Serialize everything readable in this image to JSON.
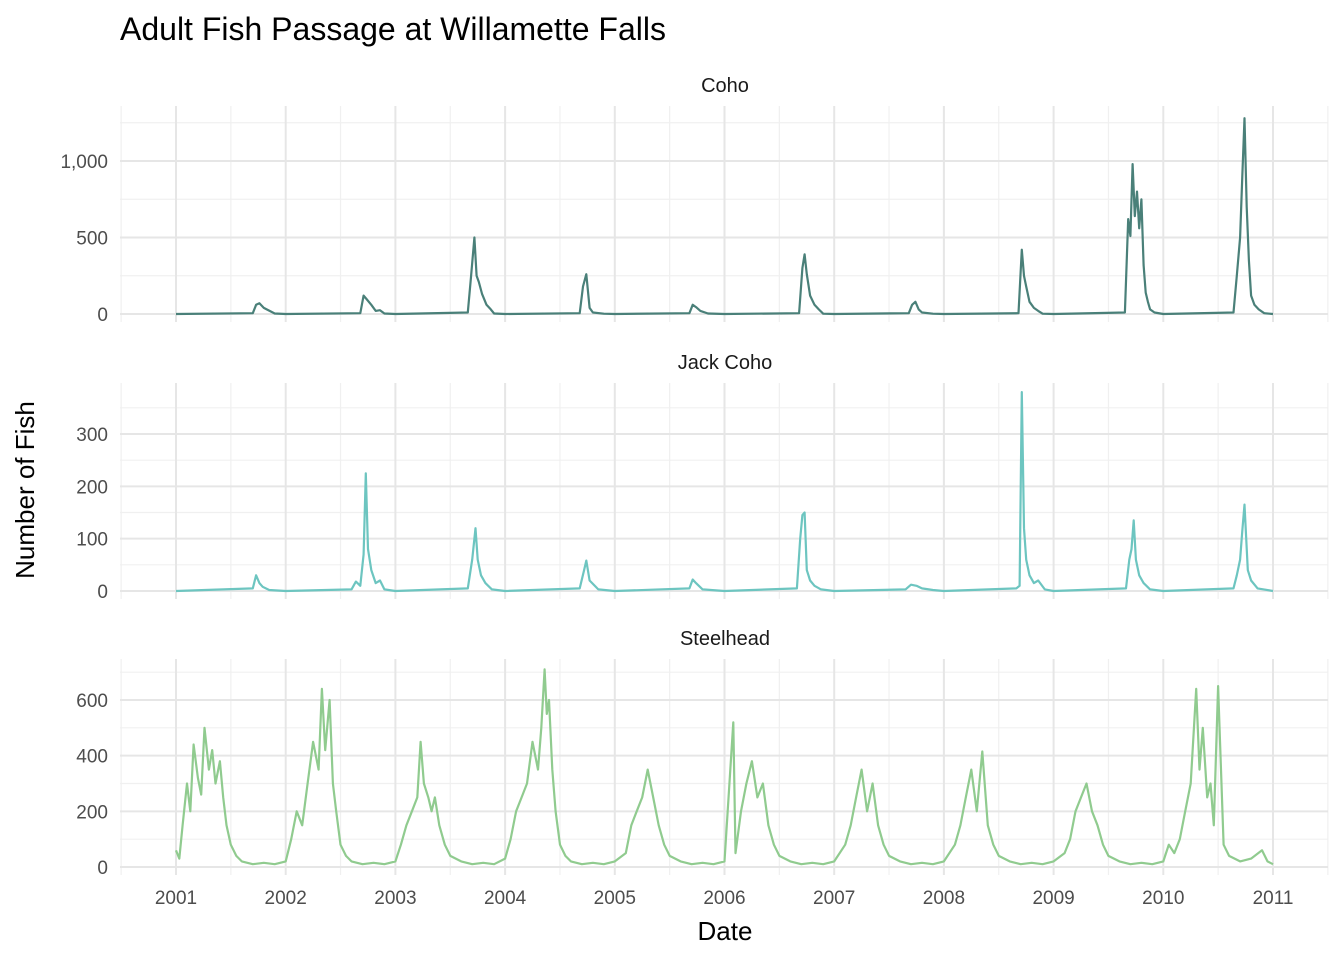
{
  "chart_data": {
    "type": "line",
    "title": "Adult Fish Passage at Willamette Falls",
    "xlabel": "Date",
    "ylabel": "Number of Fish",
    "x_ticks": [
      "2001",
      "2002",
      "2003",
      "2004",
      "2005",
      "2006",
      "2007",
      "2008",
      "2009",
      "2010",
      "2011"
    ],
    "xlim": [
      2001,
      2011
    ],
    "grid": true,
    "legend": "none",
    "panels": [
      {
        "label": "Coho",
        "color": "#4a8079",
        "ylim": [
          0,
          1300
        ],
        "y_ticks": [
          0,
          500,
          1000
        ],
        "y_tick_labels": [
          "0",
          "500",
          "1,000"
        ],
        "series": {
          "x": [
            2001.0,
            2001.7,
            2001.73,
            2001.76,
            2001.8,
            2001.9,
            2002.0,
            2002.68,
            2002.71,
            2002.74,
            2002.78,
            2002.82,
            2002.86,
            2002.9,
            2003.0,
            2003.66,
            2003.69,
            2003.72,
            2003.74,
            2003.76,
            2003.79,
            2003.83,
            2003.87,
            2003.9,
            2004.0,
            2004.68,
            2004.71,
            2004.74,
            2004.77,
            2004.8,
            2004.9,
            2005.0,
            2005.68,
            2005.71,
            2005.74,
            2005.78,
            2005.85,
            2006.0,
            2006.68,
            2006.71,
            2006.73,
            2006.75,
            2006.78,
            2006.82,
            2006.86,
            2006.9,
            2007.0,
            2007.68,
            2007.71,
            2007.74,
            2007.77,
            2007.8,
            2007.9,
            2008.0,
            2008.68,
            2008.71,
            2008.73,
            2008.75,
            2008.78,
            2008.82,
            2008.86,
            2008.9,
            2009.0,
            2009.65,
            2009.68,
            2009.7,
            2009.72,
            2009.74,
            2009.76,
            2009.78,
            2009.8,
            2009.82,
            2009.84,
            2009.86,
            2009.88,
            2009.92,
            2010.0,
            2010.64,
            2010.67,
            2010.7,
            2010.72,
            2010.74,
            2010.76,
            2010.78,
            2010.8,
            2010.83,
            2010.87,
            2010.92,
            2011.0
          ],
          "y": [
            0,
            5,
            60,
            70,
            40,
            3,
            0,
            5,
            120,
            95,
            60,
            20,
            25,
            3,
            0,
            10,
            250,
            500,
            250,
            210,
            130,
            60,
            30,
            3,
            0,
            5,
            180,
            260,
            40,
            10,
            2,
            0,
            5,
            60,
            45,
            20,
            3,
            0,
            5,
            300,
            390,
            260,
            120,
            60,
            30,
            2,
            0,
            5,
            60,
            80,
            30,
            10,
            2,
            0,
            5,
            420,
            250,
            180,
            80,
            40,
            20,
            2,
            0,
            10,
            620,
            510,
            980,
            640,
            800,
            560,
            750,
            320,
            140,
            80,
            30,
            10,
            0,
            10,
            250,
            500,
            900,
            1280,
            700,
            350,
            120,
            60,
            30,
            5,
            0
          ]
        }
      },
      {
        "label": "Jack Coho",
        "color": "#6dc5c0",
        "ylim": [
          0,
          390
        ],
        "y_ticks": [
          0,
          100,
          200,
          300
        ],
        "y_tick_labels": [
          "0",
          "100",
          "200",
          "300"
        ],
        "series": {
          "x": [
            2001.0,
            2001.7,
            2001.73,
            2001.76,
            2001.79,
            2001.85,
            2002.0,
            2002.6,
            2002.64,
            2002.68,
            2002.71,
            2002.73,
            2002.75,
            2002.78,
            2002.82,
            2002.86,
            2002.9,
            2003.0,
            2003.66,
            2003.7,
            2003.73,
            2003.75,
            2003.78,
            2003.82,
            2003.88,
            2004.0,
            2004.68,
            2004.72,
            2004.74,
            2004.77,
            2004.85,
            2005.0,
            2005.68,
            2005.71,
            2005.74,
            2005.8,
            2006.0,
            2006.66,
            2006.69,
            2006.71,
            2006.73,
            2006.75,
            2006.78,
            2006.82,
            2006.88,
            2007.0,
            2007.65,
            2007.7,
            2007.75,
            2007.8,
            2007.9,
            2008.0,
            2008.66,
            2008.69,
            2008.71,
            2008.73,
            2008.75,
            2008.78,
            2008.82,
            2008.86,
            2008.92,
            2009.0,
            2009.66,
            2009.69,
            2009.71,
            2009.73,
            2009.75,
            2009.78,
            2009.82,
            2009.88,
            2010.0,
            2010.64,
            2010.67,
            2010.7,
            2010.72,
            2010.74,
            2010.77,
            2010.8,
            2010.86,
            2011.0
          ],
          "y": [
            0,
            5,
            30,
            15,
            8,
            2,
            0,
            3,
            18,
            10,
            70,
            225,
            80,
            40,
            15,
            20,
            3,
            0,
            5,
            60,
            120,
            60,
            30,
            15,
            3,
            0,
            5,
            40,
            58,
            20,
            3,
            0,
            5,
            22,
            15,
            3,
            0,
            5,
            100,
            145,
            150,
            40,
            20,
            10,
            3,
            0,
            3,
            12,
            10,
            5,
            2,
            0,
            5,
            10,
            380,
            120,
            60,
            30,
            15,
            20,
            3,
            0,
            5,
            60,
            80,
            135,
            60,
            30,
            15,
            3,
            0,
            5,
            30,
            60,
            115,
            165,
            40,
            20,
            5,
            0
          ]
        }
      },
      {
        "label": "Steelhead",
        "color": "#90cb8f",
        "ylim": [
          0,
          740
        ],
        "y_ticks": [
          0,
          200,
          400,
          600
        ],
        "y_tick_labels": [
          "0",
          "200",
          "400",
          "600"
        ],
        "series": {
          "x": [
            2001.0,
            2001.03,
            2001.06,
            2001.1,
            2001.13,
            2001.16,
            2001.2,
            2001.23,
            2001.26,
            2001.3,
            2001.33,
            2001.36,
            2001.4,
            2001.43,
            2001.46,
            2001.5,
            2001.55,
            2001.6,
            2001.7,
            2001.8,
            2001.9,
            2002.0,
            2002.05,
            2002.1,
            2002.15,
            2002.2,
            2002.25,
            2002.3,
            2002.33,
            2002.36,
            2002.4,
            2002.43,
            2002.46,
            2002.5,
            2002.55,
            2002.6,
            2002.7,
            2002.8,
            2002.9,
            2003.0,
            2003.05,
            2003.1,
            2003.15,
            2003.2,
            2003.23,
            2003.26,
            2003.3,
            2003.33,
            2003.36,
            2003.4,
            2003.45,
            2003.5,
            2003.6,
            2003.7,
            2003.8,
            2003.9,
            2004.0,
            2004.05,
            2004.1,
            2004.15,
            2004.2,
            2004.25,
            2004.3,
            2004.33,
            2004.36,
            2004.38,
            2004.4,
            2004.43,
            2004.46,
            2004.5,
            2004.55,
            2004.6,
            2004.7,
            2004.8,
            2004.9,
            2005.0,
            2005.1,
            2005.15,
            2005.2,
            2005.25,
            2005.3,
            2005.35,
            2005.4,
            2005.45,
            2005.5,
            2005.6,
            2005.7,
            2005.8,
            2005.9,
            2006.0,
            2006.08,
            2006.1,
            2006.15,
            2006.2,
            2006.25,
            2006.3,
            2006.35,
            2006.4,
            2006.45,
            2006.5,
            2006.6,
            2006.7,
            2006.8,
            2006.9,
            2007.0,
            2007.1,
            2007.15,
            2007.2,
            2007.25,
            2007.3,
            2007.35,
            2007.4,
            2007.45,
            2007.5,
            2007.6,
            2007.7,
            2007.8,
            2007.9,
            2008.0,
            2008.1,
            2008.15,
            2008.2,
            2008.25,
            2008.3,
            2008.35,
            2008.4,
            2008.45,
            2008.5,
            2008.6,
            2008.7,
            2008.8,
            2008.9,
            2009.0,
            2009.1,
            2009.15,
            2009.2,
            2009.25,
            2009.3,
            2009.35,
            2009.4,
            2009.45,
            2009.5,
            2009.6,
            2009.7,
            2009.8,
            2009.9,
            2010.0,
            2010.05,
            2010.1,
            2010.15,
            2010.2,
            2010.25,
            2010.3,
            2010.33,
            2010.36,
            2010.4,
            2010.43,
            2010.46,
            2010.5,
            2010.55,
            2010.6,
            2010.7,
            2010.8,
            2010.9,
            2010.95,
            2011.0
          ],
          "y": [
            60,
            30,
            150,
            300,
            200,
            440,
            320,
            260,
            500,
            350,
            420,
            300,
            380,
            250,
            150,
            80,
            40,
            20,
            10,
            15,
            10,
            20,
            100,
            200,
            150,
            300,
            450,
            350,
            640,
            420,
            600,
            300,
            200,
            80,
            40,
            20,
            10,
            15,
            10,
            20,
            80,
            150,
            200,
            250,
            450,
            300,
            250,
            200,
            250,
            150,
            80,
            40,
            20,
            10,
            15,
            10,
            30,
            100,
            200,
            250,
            300,
            450,
            350,
            500,
            710,
            550,
            600,
            350,
            200,
            80,
            40,
            20,
            10,
            15,
            10,
            20,
            50,
            150,
            200,
            250,
            350,
            250,
            150,
            80,
            40,
            20,
            10,
            15,
            10,
            20,
            520,
            50,
            200,
            300,
            380,
            250,
            300,
            150,
            80,
            40,
            20,
            10,
            15,
            10,
            20,
            80,
            150,
            250,
            350,
            200,
            300,
            150,
            80,
            40,
            20,
            10,
            15,
            10,
            20,
            80,
            150,
            250,
            350,
            200,
            415,
            150,
            80,
            40,
            20,
            10,
            15,
            10,
            20,
            50,
            100,
            200,
            250,
            300,
            200,
            150,
            80,
            40,
            20,
            10,
            15,
            10,
            20,
            80,
            50,
            100,
            200,
            300,
            640,
            350,
            500,
            250,
            300,
            150,
            650,
            80,
            40,
            20,
            30,
            60,
            20,
            10
          ]
        }
      }
    ]
  }
}
